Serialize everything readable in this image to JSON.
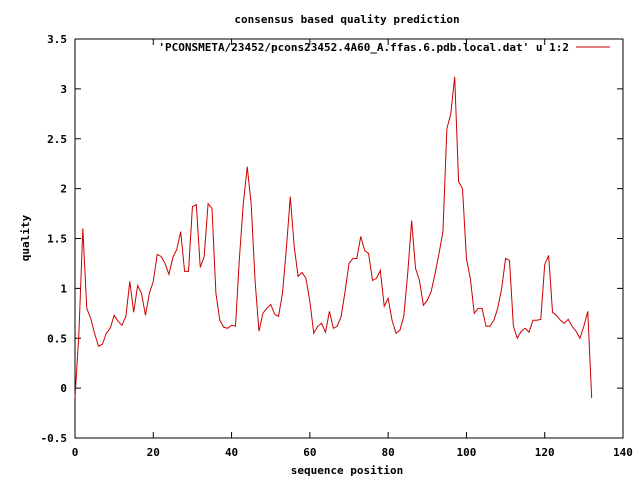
{
  "chart_data": {
    "type": "line",
    "title": "consensus based quality prediction",
    "xlabel": "sequence position",
    "ylabel": "quality",
    "xlim": [
      0,
      140
    ],
    "ylim": [
      -0.5,
      3.5
    ],
    "x_ticks": [
      0,
      20,
      40,
      60,
      80,
      100,
      120,
      140
    ],
    "x_tick_labels": [
      "0",
      "20",
      "40",
      "60",
      "80",
      "100",
      "120",
      "140"
    ],
    "y_ticks": [
      -0.5,
      0,
      0.5,
      1,
      1.5,
      2,
      2.5,
      3,
      3.5
    ],
    "y_tick_labels": [
      "-0.5",
      "0",
      "0.5",
      "1",
      "1.5",
      "2",
      "2.5",
      "3",
      "3.5"
    ],
    "grid": false,
    "legend_position": "top-right",
    "series": [
      {
        "name": "'PCONSMETA/23452/pcons23452.4A60_A.ffas.6.pdb.local.dat' u 1:2",
        "color": "#cc0000",
        "x": [
          0,
          1,
          2,
          3,
          4,
          5,
          6,
          7,
          8,
          9,
          10,
          11,
          12,
          13,
          14,
          15,
          16,
          17,
          18,
          19,
          20,
          21,
          22,
          23,
          24,
          25,
          26,
          27,
          28,
          29,
          30,
          31,
          32,
          33,
          34,
          35,
          36,
          37,
          38,
          39,
          40,
          41,
          42,
          43,
          44,
          45,
          46,
          47,
          48,
          49,
          50,
          51,
          52,
          53,
          54,
          55,
          56,
          57,
          58,
          59,
          60,
          61,
          62,
          63,
          64,
          65,
          66,
          67,
          68,
          69,
          70,
          71,
          72,
          73,
          74,
          75,
          76,
          77,
          78,
          79,
          80,
          81,
          82,
          83,
          84,
          85,
          86,
          87,
          88,
          89,
          90,
          91,
          92,
          93,
          94,
          95,
          96,
          97,
          98,
          99,
          100,
          101,
          102,
          103,
          104,
          105,
          106,
          107,
          108,
          109,
          110,
          111,
          112,
          113,
          114,
          115,
          116,
          117,
          118,
          119,
          120,
          121,
          122,
          123,
          124,
          125,
          126,
          127,
          128,
          129,
          130,
          131,
          132
        ],
        "values": [
          -0.1,
          0.55,
          1.6,
          0.8,
          0.7,
          0.55,
          0.42,
          0.44,
          0.55,
          0.6,
          0.73,
          0.67,
          0.63,
          0.72,
          1.07,
          0.76,
          1.03,
          0.95,
          0.73,
          0.95,
          1.07,
          1.34,
          1.32,
          1.25,
          1.14,
          1.31,
          1.39,
          1.57,
          1.17,
          1.17,
          1.82,
          1.84,
          1.21,
          1.32,
          1.85,
          1.8,
          0.95,
          0.68,
          0.61,
          0.6,
          0.63,
          0.62,
          1.3,
          1.85,
          2.22,
          1.85,
          1.08,
          0.57,
          0.75,
          0.8,
          0.84,
          0.74,
          0.72,
          0.95,
          1.4,
          1.92,
          1.42,
          1.12,
          1.16,
          1.1,
          0.87,
          0.55,
          0.62,
          0.65,
          0.56,
          0.77,
          0.6,
          0.62,
          0.72,
          0.97,
          1.25,
          1.3,
          1.3,
          1.52,
          1.38,
          1.35,
          1.08,
          1.1,
          1.18,
          0.82,
          0.9,
          0.68,
          0.55,
          0.58,
          0.72,
          1.15,
          1.68,
          1.2,
          1.08,
          0.83,
          0.88,
          0.97,
          1.15,
          1.35,
          1.57,
          2.6,
          2.75,
          3.12,
          2.07,
          2.0,
          1.3,
          1.1,
          0.75,
          0.8,
          0.8,
          0.62,
          0.62,
          0.68,
          0.8,
          1.0,
          1.3,
          1.28,
          0.62,
          0.5,
          0.57,
          0.6,
          0.56,
          0.68,
          0.68,
          0.69,
          1.24,
          1.33,
          0.76,
          0.73,
          0.68,
          0.65,
          0.69,
          0.62,
          0.57,
          0.5,
          0.62,
          0.77,
          -0.1
        ]
      }
    ]
  }
}
